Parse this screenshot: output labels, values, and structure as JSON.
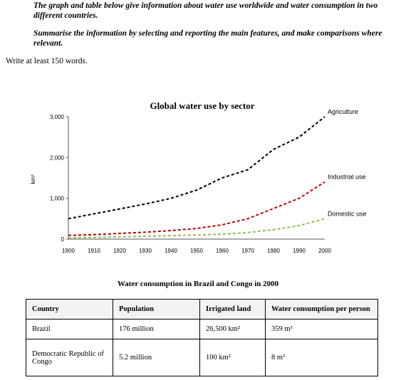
{
  "instructions": {
    "line1": "The graph and table below give information about water use worldwide and water consumption in two different countries.",
    "line2": "Summarise the information by selecting and reporting the main features, and make comparisons where relevant.",
    "write": "Write at least 150 words."
  },
  "chart_data": {
    "type": "line",
    "title": "Global water use by sector",
    "ylabel": "km³",
    "xlabel": "",
    "x": [
      1900,
      1910,
      1920,
      1930,
      1940,
      1950,
      1960,
      1970,
      1980,
      1990,
      2000
    ],
    "ylim": [
      0,
      3000
    ],
    "yticks": [
      "0",
      "1,000",
      "2,000",
      "3,000"
    ],
    "xticks": [
      "1900",
      "1910",
      "1920",
      "1930",
      "1940",
      "1950",
      "1960",
      "1970",
      "1980",
      "1990",
      "2000"
    ],
    "grid": false,
    "series": [
      {
        "name": "Agriculture",
        "color": "#000000",
        "values": [
          500,
          620,
          740,
          860,
          1000,
          1200,
          1500,
          1700,
          2200,
          2500,
          3000
        ]
      },
      {
        "name": "Industrial use",
        "color": "#c00000",
        "values": [
          90,
          110,
          140,
          170,
          210,
          260,
          350,
          500,
          750,
          1000,
          1400
        ]
      },
      {
        "name": "Domestic use",
        "color": "#92c050",
        "values": [
          30,
          40,
          55,
          70,
          85,
          100,
          120,
          160,
          230,
          330,
          500
        ]
      }
    ]
  },
  "table": {
    "title": "Water consumption in Brazil and Congo in 2000",
    "headers": [
      "Country",
      "Population",
      "Irrigated land",
      "Water consumption per person"
    ],
    "rows": [
      [
        "Brazil",
        "176 million",
        "26,500 km²",
        "359 m³"
      ],
      [
        "Democratic Republic of Congo",
        "5.2 million",
        "100 km²",
        "8 m³"
      ]
    ]
  }
}
